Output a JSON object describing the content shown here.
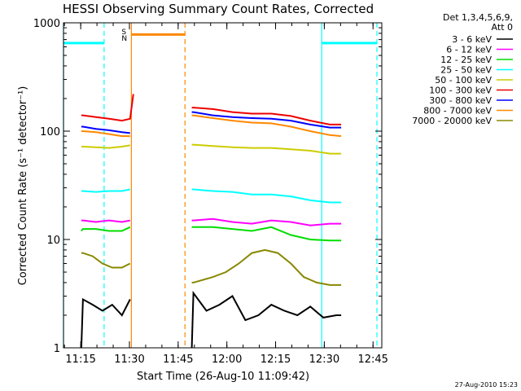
{
  "chart_data": {
    "type": "line",
    "title": "HESSI Observing Summary Count Rates, Corrected",
    "xlabel": "Start Time (26-Aug-10 11:09:42)",
    "ylabel": "Corrected Count Rate (s⁻¹ detector⁻¹)",
    "x_unit": "minutes after 11:09:42",
    "xlim": [
      0,
      98
    ],
    "ylim": [
      1,
      1000
    ],
    "yscale": "log",
    "x_ticks": [
      {
        "at": 5.3,
        "label": "11:15"
      },
      {
        "at": 20.3,
        "label": "11:30"
      },
      {
        "at": 35.3,
        "label": "11:45"
      },
      {
        "at": 50.3,
        "label": "12:00"
      },
      {
        "at": 65.3,
        "label": "12:15"
      },
      {
        "at": 80.3,
        "label": "12:30"
      },
      {
        "at": 95.3,
        "label": "12:45"
      }
    ],
    "y_ticks": [
      {
        "at": 1,
        "label": "1"
      },
      {
        "at": 10,
        "label": "10"
      },
      {
        "at": 100,
        "label": "100"
      },
      {
        "at": 1000,
        "label": "1000"
      }
    ],
    "legend": {
      "position": "right",
      "header": [
        "Det 1,3,4,5,6,9,",
        "Att 0"
      ],
      "items": [
        {
          "name": "3 - 6 keV",
          "color": "#000000"
        },
        {
          "name": "6 - 12 keV",
          "color": "#ff00ff"
        },
        {
          "name": "12 - 25 keV",
          "color": "#00dd00"
        },
        {
          "name": "25 - 50 keV",
          "color": "#00ffff"
        },
        {
          "name": "50 - 100 keV",
          "color": "#cccc00"
        },
        {
          "name": "100 - 300 keV",
          "color": "#ee0000"
        },
        {
          "name": "300 - 800 keV",
          "color": "#0000ff"
        },
        {
          "name": "800 - 7000 keV",
          "color": "#ff8800"
        },
        {
          "name": "7000 - 20000 keV",
          "color": "#888800"
        }
      ]
    },
    "series": [
      {
        "name": "3 - 6 keV",
        "color": "#000000",
        "segments": [
          {
            "x": [
              5.5,
              6,
              9,
              12,
              15,
              18,
              20.5
            ],
            "y": [
              1,
              2.8,
              2.5,
              2.2,
              2.5,
              2.0,
              2.8
            ]
          },
          {
            "x": [
              39.5,
              40,
              44,
              48,
              52,
              56,
              60,
              64,
              68,
              72,
              76,
              80,
              84,
              85.5
            ],
            "y": [
              1,
              3.2,
              2.2,
              2.5,
              3.0,
              1.8,
              2.0,
              2.5,
              2.2,
              2.0,
              2.4,
              1.9,
              2.0,
              2.0
            ]
          }
        ]
      },
      {
        "name": "6 - 12 keV",
        "color": "#ff00ff",
        "segments": [
          {
            "x": [
              5.5,
              6,
              10,
              14,
              18,
              20.5
            ],
            "y": [
              15,
              15,
              14.5,
              15,
              14.5,
              15
            ]
          },
          {
            "x": [
              39.5,
              40,
              46,
              52,
              58,
              64,
              70,
              76,
              82,
              85.5
            ],
            "y": [
              15,
              15,
              15.5,
              14.5,
              14,
              15,
              14.5,
              13.5,
              14,
              14
            ]
          }
        ]
      },
      {
        "name": "12 - 25 keV",
        "color": "#00dd00",
        "segments": [
          {
            "x": [
              5.5,
              6,
              10,
              14,
              18,
              20.5
            ],
            "y": [
              12,
              12.5,
              12.5,
              12,
              12,
              13
            ]
          },
          {
            "x": [
              39.5,
              40,
              46,
              52,
              58,
              64,
              70,
              76,
              82,
              85.5
            ],
            "y": [
              13,
              13,
              13,
              12.5,
              12,
              13,
              11,
              10,
              9.8,
              9.8
            ]
          }
        ]
      },
      {
        "name": "25 - 50 keV",
        "color": "#00ffff",
        "segments": [
          {
            "x": [
              5.5,
              6,
              10,
              14,
              18,
              20.5
            ],
            "y": [
              28,
              28,
              27.5,
              28,
              28,
              29
            ]
          },
          {
            "x": [
              39.5,
              40,
              46,
              52,
              58,
              64,
              70,
              76,
              82,
              85.5
            ],
            "y": [
              29,
              29,
              28,
              27.5,
              26,
              26,
              25,
              23,
              22,
              22
            ]
          }
        ]
      },
      {
        "name": "50 - 100 keV",
        "color": "#cccc00",
        "segments": [
          {
            "x": [
              5.5,
              6,
              10,
              14,
              18,
              20.5
            ],
            "y": [
              72,
              72,
              71,
              70,
              72,
              74
            ]
          },
          {
            "x": [
              39.5,
              40,
              46,
              52,
              58,
              64,
              70,
              76,
              82,
              85.5
            ],
            "y": [
              75,
              75,
              73,
              71,
              70,
              70,
              68,
              66,
              62,
              62
            ]
          }
        ]
      },
      {
        "name": "100 - 300 keV",
        "color": "#ee0000",
        "segments": [
          {
            "x": [
              5.5,
              6,
              10,
              14,
              18,
              20.5,
              21.5
            ],
            "y": [
              140,
              140,
              135,
              130,
              125,
              130,
              220
            ]
          },
          {
            "x": [
              39.5,
              40,
              46,
              52,
              58,
              64,
              70,
              76,
              82,
              85.5
            ],
            "y": [
              165,
              165,
              160,
              150,
              145,
              145,
              138,
              125,
              115,
              115
            ]
          }
        ]
      },
      {
        "name": "300 - 800 keV",
        "color": "#0000ff",
        "segments": [
          {
            "x": [
              5.5,
              6,
              10,
              14,
              18,
              20.5
            ],
            "y": [
              110,
              110,
              105,
              102,
              98,
              96
            ]
          },
          {
            "x": [
              39.5,
              40,
              46,
              52,
              58,
              64,
              70,
              76,
              82,
              85.5
            ],
            "y": [
              150,
              150,
              140,
              135,
              132,
              130,
              125,
              115,
              108,
              108
            ]
          }
        ]
      },
      {
        "name": "800 - 7000 keV",
        "color": "#ff8800",
        "segments": [
          {
            "x": [
              5.5,
              6,
              10,
              14,
              18,
              20.5
            ],
            "y": [
              100,
              100,
              98,
              94,
              90,
              90
            ]
          },
          {
            "x": [
              39.5,
              40,
              46,
              52,
              58,
              64,
              70,
              76,
              82,
              85.5
            ],
            "y": [
              140,
              140,
              132,
              125,
              120,
              118,
              110,
              100,
              92,
              90
            ]
          }
        ]
      },
      {
        "name": "7000 - 20000 keV",
        "color": "#888800",
        "segments": [
          {
            "x": [
              5.5,
              6,
              9,
              12,
              15,
              18,
              20.5
            ],
            "y": [
              7.5,
              7.5,
              7,
              6,
              5.5,
              5.5,
              6
            ]
          },
          {
            "x": [
              39.5,
              40,
              46,
              50,
              54,
              58,
              62,
              66,
              70,
              74,
              78,
              82,
              85.5
            ],
            "y": [
              4,
              4,
              4.5,
              5,
              6,
              7.5,
              8,
              7.5,
              6,
              4.5,
              4,
              3.8,
              3.8
            ]
          }
        ]
      }
    ],
    "flag_bars": [
      {
        "color": "#00ffff",
        "x": [
          0,
          12.5
        ],
        "y": 650
      },
      {
        "color": "#ff8800",
        "x": [
          21,
          37.5
        ],
        "y": 780
      },
      {
        "color": "#00ffff",
        "x": [
          79.5,
          96.5
        ],
        "y": 650
      }
    ],
    "vlines": [
      {
        "x": 0,
        "color": "#00ffff",
        "dash": false
      },
      {
        "x": 12.5,
        "color": "#00ffff",
        "dash": true
      },
      {
        "x": 20.9,
        "color": "#ff8800",
        "dash": false
      },
      {
        "x": 37.4,
        "color": "#ff8800",
        "dash": true
      },
      {
        "x": 79.5,
        "color": "#00ffff",
        "dash": false
      },
      {
        "x": 96.5,
        "color": "#00ffff",
        "dash": true
      }
    ],
    "markers": [
      {
        "text": "S",
        "x": 20.9,
        "color": "#ff8800"
      },
      {
        "text": "N",
        "x": 20.9,
        "color": "#00ffff"
      }
    ],
    "footer": "27-Aug-2010 15:23"
  }
}
